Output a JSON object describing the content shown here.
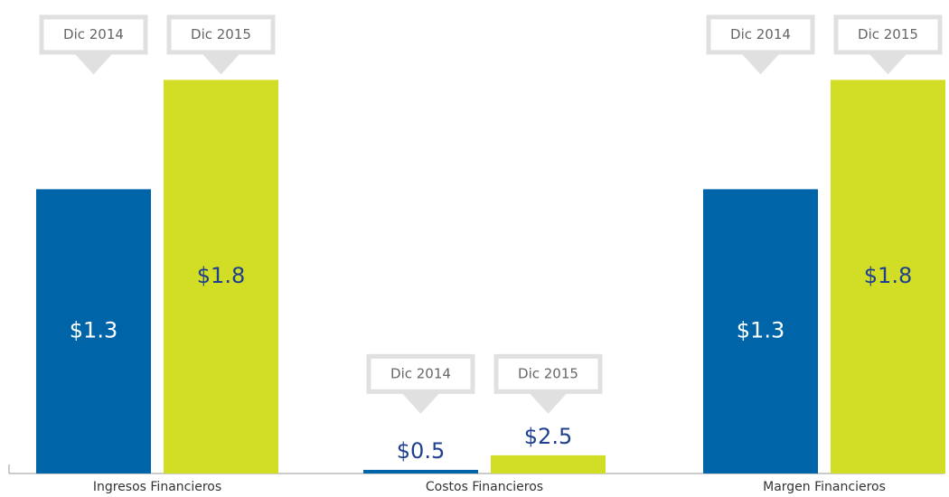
{
  "chart_data": [
    {
      "type": "bar",
      "xlabel": "Ingresos Financieros",
      "categories": [
        "Dic 2014",
        "Dic 2015"
      ],
      "values": [
        1.3,
        1.8
      ],
      "value_labels": [
        "$1.3",
        "$1.8"
      ],
      "colors": [
        "#0065a8",
        "#d2dd26"
      ],
      "ylim": [
        0,
        2
      ]
    },
    {
      "type": "bar",
      "xlabel": "Costos Financieros",
      "categories": [
        "Dic 2014",
        "Dic 2015"
      ],
      "values": [
        0.5,
        2.5
      ],
      "value_labels": [
        "$0.5",
        "$2.5"
      ],
      "colors": [
        "#0065a8",
        "#d2dd26"
      ],
      "ylim": [
        0,
        60
      ]
    },
    {
      "type": "bar",
      "xlabel": "Margen Financieros",
      "categories": [
        "Dic 2014",
        "Dic 2015"
      ],
      "values": [
        1.3,
        1.8
      ],
      "value_labels": [
        "$1.3",
        "$1.8"
      ],
      "colors": [
        "#0065a8",
        "#d2dd26"
      ],
      "ylim": [
        0,
        2
      ]
    }
  ]
}
